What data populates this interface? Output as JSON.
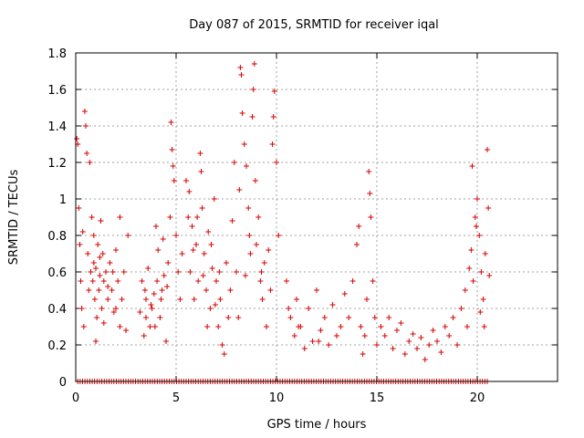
{
  "chart_data": {
    "type": "scatter",
    "title": "Day 087 of 2015, SRMTID for receiver iqal",
    "xlabel": "GPS time / hours",
    "ylabel": "SRMTID / TECUs",
    "xlim": [
      0,
      24
    ],
    "ylim": [
      0,
      1.8
    ],
    "xticks": [
      0,
      5,
      10,
      15,
      20
    ],
    "yticks": [
      0,
      0.2,
      0.4,
      0.6,
      0.8,
      1,
      1.2,
      1.4,
      1.6,
      1.8
    ],
    "xtick_labels": [
      "0",
      "5",
      "10",
      "15",
      "20"
    ],
    "ytick_labels": [
      "0",
      "0.2",
      "0.4",
      "0.6",
      "0.8",
      "1",
      "1.2",
      "1.4",
      "1.6",
      "1.8"
    ],
    "grid": true,
    "marker": "plus",
    "marker_color": "#d40000",
    "series": [
      {
        "name": "SRMTID",
        "points": [
          [
            0.05,
            1.33
          ],
          [
            0.1,
            1.3
          ],
          [
            0.15,
            0.95
          ],
          [
            0.2,
            0.75
          ],
          [
            0.25,
            0.55
          ],
          [
            0.3,
            0.4
          ],
          [
            0.35,
            0.82
          ],
          [
            0.4,
            0.3
          ],
          [
            0.45,
            1.48
          ],
          [
            0.5,
            1.4
          ],
          [
            0.55,
            1.25
          ],
          [
            0.6,
            0.7
          ],
          [
            0.65,
            0.5
          ],
          [
            0.7,
            1.2
          ],
          [
            0.75,
            0.6
          ],
          [
            0.8,
            0.9
          ],
          [
            0.85,
            0.55
          ],
          [
            0.9,
            0.65
          ],
          [
            0.95,
            0.45
          ],
          [
            1.0,
            0.62
          ],
          [
            1.05,
            0.35
          ],
          [
            1.1,
            0.75
          ],
          [
            1.15,
            0.5
          ],
          [
            1.2,
            0.58
          ],
          [
            1.25,
            0.88
          ],
          [
            1.3,
            0.4
          ],
          [
            1.35,
            0.7
          ],
          [
            1.4,
            0.55
          ],
          [
            1.5,
            0.6
          ],
          [
            1.6,
            0.45
          ],
          [
            1.7,
            0.65
          ],
          [
            1.8,
            0.5
          ],
          [
            1.9,
            0.38
          ],
          [
            2.0,
            0.72
          ],
          [
            2.1,
            0.55
          ],
          [
            2.2,
            0.3
          ],
          [
            2.3,
            0.45
          ],
          [
            2.4,
            0.6
          ],
          [
            2.5,
            0.28
          ],
          [
            2.6,
            0.8
          ],
          [
            1.0,
            0.22
          ],
          [
            1.4,
            0.32
          ],
          [
            0.9,
            0.8
          ],
          [
            1.2,
            0.68
          ],
          [
            1.6,
            0.52
          ],
          [
            2.2,
            0.9
          ],
          [
            2.0,
            0.4
          ],
          [
            1.85,
            0.6
          ],
          [
            3.2,
            0.38
          ],
          [
            3.3,
            0.55
          ],
          [
            3.4,
            0.25
          ],
          [
            3.5,
            0.45
          ],
          [
            3.6,
            0.62
          ],
          [
            3.7,
            0.3
          ],
          [
            3.8,
            0.4
          ],
          [
            3.9,
            0.48
          ],
          [
            4.0,
            0.85
          ],
          [
            4.1,
            0.72
          ],
          [
            4.2,
            0.35
          ],
          [
            4.3,
            0.5
          ],
          [
            4.4,
            0.58
          ],
          [
            4.5,
            0.22
          ],
          [
            4.6,
            0.65
          ],
          [
            4.7,
            0.9
          ],
          [
            4.75,
            1.42
          ],
          [
            4.8,
            1.27
          ],
          [
            4.85,
            1.18
          ],
          [
            4.9,
            1.1
          ],
          [
            5.0,
            0.8
          ],
          [
            5.1,
            0.6
          ],
          [
            5.2,
            0.45
          ],
          [
            5.3,
            0.7
          ],
          [
            3.5,
            0.35
          ],
          [
            3.75,
            0.42
          ],
          [
            4.05,
            0.55
          ],
          [
            4.35,
            0.78
          ],
          [
            3.95,
            0.3
          ],
          [
            4.25,
            0.45
          ],
          [
            4.55,
            0.52
          ],
          [
            3.45,
            0.5
          ],
          [
            5.5,
            1.1
          ],
          [
            5.6,
            0.9
          ],
          [
            5.7,
            0.6
          ],
          [
            5.8,
            0.85
          ],
          [
            5.9,
            0.45
          ],
          [
            6.0,
            0.75
          ],
          [
            6.1,
            0.55
          ],
          [
            6.2,
            1.25
          ],
          [
            6.25,
            1.15
          ],
          [
            6.3,
            0.95
          ],
          [
            6.4,
            0.7
          ],
          [
            6.5,
            0.5
          ],
          [
            6.6,
            0.82
          ],
          [
            6.7,
            0.4
          ],
          [
            6.8,
            0.62
          ],
          [
            6.9,
            1.0
          ],
          [
            7.0,
            0.55
          ],
          [
            7.1,
            0.3
          ],
          [
            7.2,
            0.45
          ],
          [
            7.3,
            0.2
          ],
          [
            7.4,
            0.15
          ],
          [
            7.5,
            0.65
          ],
          [
            7.6,
            0.35
          ],
          [
            7.7,
            0.5
          ],
          [
            5.65,
            1.04
          ],
          [
            5.85,
            0.72
          ],
          [
            6.05,
            0.9
          ],
          [
            6.35,
            0.58
          ],
          [
            6.55,
            0.3
          ],
          [
            6.75,
            0.75
          ],
          [
            6.95,
            0.42
          ],
          [
            7.15,
            0.6
          ],
          [
            7.8,
            0.88
          ],
          [
            7.9,
            1.2
          ],
          [
            8.0,
            0.6
          ],
          [
            8.1,
            0.35
          ],
          [
            8.2,
            1.72
          ],
          [
            8.25,
            1.68
          ],
          [
            8.3,
            1.47
          ],
          [
            8.4,
            1.3
          ],
          [
            8.5,
            1.18
          ],
          [
            8.6,
            0.95
          ],
          [
            8.7,
            0.7
          ],
          [
            8.8,
            1.45
          ],
          [
            8.85,
            1.6
          ],
          [
            8.9,
            1.74
          ],
          [
            9.0,
            0.75
          ],
          [
            9.1,
            0.9
          ],
          [
            9.2,
            0.55
          ],
          [
            9.3,
            0.45
          ],
          [
            9.4,
            0.65
          ],
          [
            9.5,
            0.3
          ],
          [
            9.6,
            0.72
          ],
          [
            9.7,
            0.5
          ],
          [
            9.8,
            1.3
          ],
          [
            9.85,
            1.45
          ],
          [
            9.9,
            1.59
          ],
          [
            10.0,
            1.2
          ],
          [
            10.1,
            0.8
          ],
          [
            8.15,
            1.05
          ],
          [
            8.45,
            0.58
          ],
          [
            8.65,
            0.8
          ],
          [
            8.95,
            1.1
          ],
          [
            9.25,
            0.6
          ],
          [
            10.5,
            0.55
          ],
          [
            10.7,
            0.35
          ],
          [
            10.9,
            0.25
          ],
          [
            11.0,
            0.45
          ],
          [
            11.2,
            0.3
          ],
          [
            11.4,
            0.18
          ],
          [
            11.6,
            0.4
          ],
          [
            11.8,
            0.22
          ],
          [
            12.0,
            0.5
          ],
          [
            12.2,
            0.28
          ],
          [
            12.4,
            0.35
          ],
          [
            12.6,
            0.2
          ],
          [
            12.8,
            0.42
          ],
          [
            13.0,
            0.25
          ],
          [
            13.2,
            0.3
          ],
          [
            13.4,
            0.48
          ],
          [
            13.6,
            0.35
          ],
          [
            13.8,
            0.55
          ],
          [
            14.0,
            0.75
          ],
          [
            14.1,
            0.85
          ],
          [
            14.2,
            0.3
          ],
          [
            14.3,
            0.15
          ],
          [
            14.4,
            0.25
          ],
          [
            14.5,
            0.45
          ],
          [
            14.6,
            1.15
          ],
          [
            14.65,
            1.03
          ],
          [
            14.7,
            0.9
          ],
          [
            14.8,
            0.55
          ],
          [
            14.9,
            0.35
          ],
          [
            10.6,
            0.4
          ],
          [
            11.1,
            0.3
          ],
          [
            12.1,
            0.22
          ],
          [
            15.0,
            0.2
          ],
          [
            15.2,
            0.3
          ],
          [
            15.4,
            0.25
          ],
          [
            15.6,
            0.35
          ],
          [
            15.8,
            0.18
          ],
          [
            16.0,
            0.28
          ],
          [
            16.2,
            0.32
          ],
          [
            16.4,
            0.15
          ],
          [
            16.6,
            0.22
          ],
          [
            16.8,
            0.26
          ],
          [
            17.0,
            0.18
          ],
          [
            17.2,
            0.24
          ],
          [
            17.4,
            0.12
          ],
          [
            17.6,
            0.2
          ],
          [
            17.8,
            0.28
          ],
          [
            18.0,
            0.22
          ],
          [
            18.2,
            0.16
          ],
          [
            18.4,
            0.3
          ],
          [
            18.6,
            0.25
          ],
          [
            18.8,
            0.35
          ],
          [
            19.0,
            0.2
          ],
          [
            19.2,
            0.4
          ],
          [
            19.4,
            0.5
          ],
          [
            19.6,
            0.62
          ],
          [
            19.7,
            0.72
          ],
          [
            19.8,
            0.55
          ],
          [
            19.9,
            0.9
          ],
          [
            20.0,
            1.0
          ],
          [
            20.1,
            0.8
          ],
          [
            20.2,
            0.6
          ],
          [
            20.3,
            0.45
          ],
          [
            20.4,
            0.7
          ],
          [
            20.5,
            1.27
          ],
          [
            20.55,
            0.95
          ],
          [
            20.6,
            0.58
          ],
          [
            19.75,
            1.18
          ],
          [
            19.95,
            0.85
          ],
          [
            20.15,
            0.38
          ],
          [
            19.5,
            0.3
          ],
          [
            20.35,
            0.3
          ]
        ]
      },
      {
        "name": "SRMTID (zero values)",
        "x_start": 0.1,
        "x_end": 20.6,
        "x_step": 0.12,
        "y": 0
      }
    ]
  }
}
